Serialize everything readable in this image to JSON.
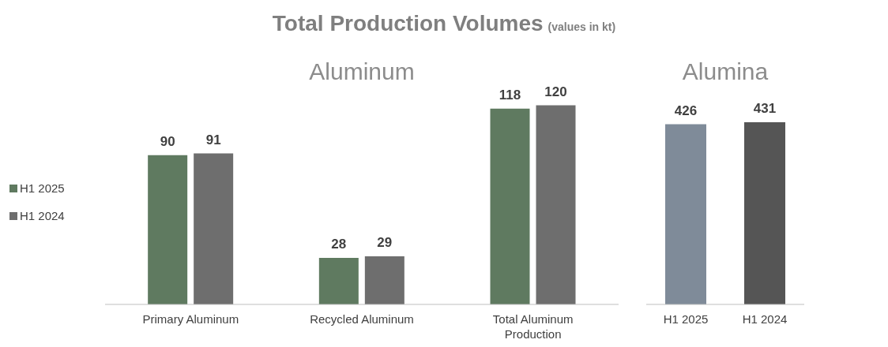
{
  "chart_data": [
    {
      "type": "bar",
      "title": "Total Production Volumes",
      "subtitle": "(values in kt)",
      "annotations": [
        "Aluminum"
      ],
      "categories": [
        "Primary Aluminum",
        "Recycled Aluminum",
        "Total Aluminum Production"
      ],
      "series": [
        {
          "name": "H1 2025",
          "color": "#5f7a60",
          "values": [
            90,
            28,
            118
          ]
        },
        {
          "name": "H1 2024",
          "color": "#6e6e6e",
          "values": [
            91,
            29,
            120
          ]
        }
      ],
      "data_labels": true,
      "legend": "left"
    },
    {
      "type": "bar",
      "annotations": [
        "Alumina"
      ],
      "categories": [
        "H1 2025",
        "H1 2024"
      ],
      "values": [
        426,
        431
      ],
      "colors": [
        "#7f8b99",
        "#555555"
      ],
      "data_labels": true
    }
  ]
}
